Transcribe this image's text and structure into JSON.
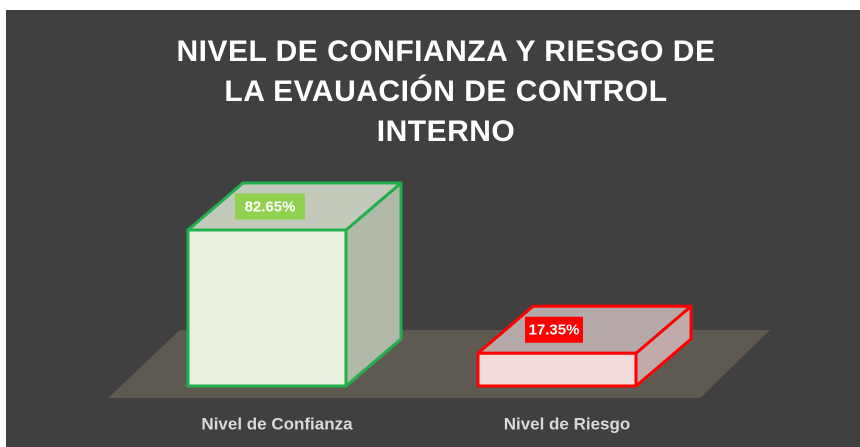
{
  "chart_data": {
    "type": "bar3d",
    "title": "NIVEL DE CONFIANZA Y RIESGO DE LA EVAUACIÓN DE CONTROL INTERNO",
    "categories": [
      "Nivel de Confianza",
      "Nivel de Riesgo"
    ],
    "values": [
      82.65,
      17.35
    ],
    "value_labels": [
      "82.65%",
      "17.35%"
    ],
    "colors": [
      "#22b04c",
      "#ff0000"
    ]
  }
}
